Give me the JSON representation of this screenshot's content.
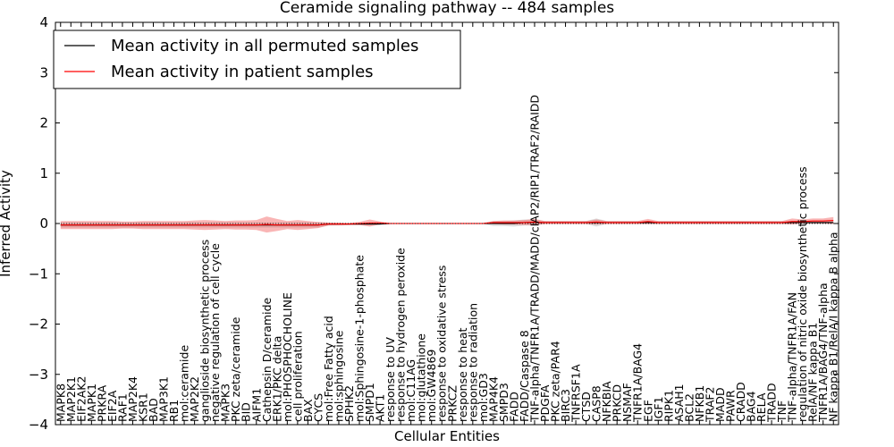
{
  "chart_data": {
    "type": "line",
    "title": "Ceramide signaling pathway -- 484 samples",
    "xlabel": "Cellular Entities",
    "ylabel": "Inferred Activity",
    "ylim": [
      -4,
      4
    ],
    "yticks": [
      -4,
      -3,
      -2,
      -1,
      0,
      1,
      2,
      3,
      4
    ],
    "legend_location": "top-left",
    "categories": [
      "MAPK8",
      "MAP2K1",
      "EIF2AK2",
      "MAPK1",
      "PRKRA",
      "EIF2A",
      "RAF1",
      "MAP2K4",
      "KSR1",
      "BAD",
      "MAP3K1",
      "RB1",
      "mol:ceramide",
      "MAP2K2",
      "ganglioside biosynthetic process",
      "negative regulation of cell cycle",
      "MAPK3",
      "PKC zeta/ceramide",
      "BID",
      "AIFM1",
      "Cathepsin D/ceramide",
      "ERK1/PKC delta",
      "mol:PHOSPHOCHOLINE",
      "cell proliferation",
      "BAX",
      "CYCS",
      "mol:Free Fatty acid",
      "mol:sphingosine",
      "SPHK2",
      "mol:Sphingosine-1-phosphate",
      "SMPD1",
      "AKT1",
      "response to UV",
      "response to hydrogen peroxide",
      "mol:C11AG",
      "mol:glutathione",
      "mol:GW4869",
      "response to oxidative stress",
      "PRKCZ",
      "response to heat",
      "response to radiation",
      "mol:GD3",
      "MAP4K4",
      "SMPD3",
      "FADD",
      "FADD/Caspase 8",
      "TNF-alpha/TNFR1A/TRADD/MADD/cIAP2/RIP1/TRAF2/RAIDD",
      "PDGFA",
      "PKC zeta/PAR4",
      "BIRC3",
      "TNFRSF1A",
      "CTSD",
      "CASP8",
      "NFKBIA",
      "PRKCD",
      "NSMAF",
      "TNFR1A/BAG4",
      "EGF",
      "IGF1",
      "RIPK1",
      "ASAH1",
      "BCL2",
      "NFKB1",
      "TRAF2",
      "MADD",
      "PAWR",
      "CRADD",
      "BAG4",
      "RELA",
      "TRADD",
      "TNF",
      "TNF-alpha/TNFR1A/FAN",
      "regulation of nitric oxide biosynthetic process",
      "RelA/NF kappa B1",
      "TNFR1A/BAG4/TNF-alpha",
      "NF kappa B1/RelA/I kappa B alpha"
    ],
    "series": [
      {
        "name": "Mean activity in all permuted samples",
        "color": "#000000",
        "values": [
          -0.03,
          -0.03,
          -0.03,
          -0.03,
          -0.03,
          -0.03,
          -0.03,
          -0.03,
          -0.03,
          -0.03,
          -0.03,
          -0.03,
          -0.03,
          -0.03,
          -0.03,
          -0.03,
          -0.03,
          -0.03,
          -0.03,
          -0.03,
          -0.03,
          -0.03,
          -0.03,
          -0.03,
          -0.03,
          -0.03,
          -0.01,
          -0.01,
          -0.01,
          -0.01,
          -0.01,
          -0.01,
          0,
          0,
          0,
          0,
          0,
          0,
          0,
          0,
          0,
          0,
          0,
          0,
          0,
          0.02,
          0.02,
          0.02,
          0.02,
          0.02,
          0.02,
          0.02,
          0.02,
          0.02,
          0.02,
          0.02,
          0.02,
          0.02,
          0.02,
          0.02,
          0.02,
          0.02,
          0.02,
          0.02,
          0.02,
          0.02,
          0.02,
          0.02,
          0.02,
          0.02,
          0.02,
          0.02,
          0.02,
          0.02,
          0.02,
          0.02
        ],
        "band": [
          0.05,
          0.05,
          0.05,
          0.05,
          0.05,
          0.05,
          0.05,
          0.05,
          0.05,
          0.05,
          0.05,
          0.05,
          0.05,
          0.05,
          0.05,
          0.05,
          0.05,
          0.05,
          0.05,
          0.05,
          0.05,
          0.05,
          0.05,
          0.05,
          0.05,
          0.05,
          0.03,
          0.02,
          0.02,
          0.02,
          0.02,
          0.02,
          0.01,
          0.01,
          0.01,
          0.01,
          0.01,
          0.01,
          0.01,
          0.01,
          0.01,
          0.01,
          0.05,
          0.05,
          0.06,
          0.06,
          0.06,
          0.03,
          0.03,
          0.03,
          0.03,
          0.03,
          0.08,
          0.03,
          0.03,
          0.03,
          0.03,
          0.03,
          0.03,
          0.03,
          0.03,
          0.03,
          0.03,
          0.03,
          0.03,
          0.03,
          0.03,
          0.03,
          0.03,
          0.03,
          0.03,
          0.03,
          0.03,
          0.03,
          0.03,
          0.03
        ]
      },
      {
        "name": "Mean activity in patient samples",
        "color": "#ff0000",
        "values": [
          -0.03,
          -0.03,
          -0.03,
          -0.03,
          -0.03,
          -0.03,
          -0.03,
          -0.03,
          -0.03,
          -0.03,
          -0.03,
          -0.03,
          -0.03,
          -0.03,
          -0.03,
          -0.03,
          -0.03,
          -0.03,
          -0.03,
          -0.03,
          -0.02,
          -0.03,
          -0.03,
          -0.03,
          -0.03,
          -0.03,
          -0.01,
          -0.01,
          -0.01,
          0,
          0.01,
          0.01,
          0,
          0,
          0,
          0,
          0,
          0,
          0,
          0,
          0,
          0,
          0.02,
          0.02,
          0.02,
          0.02,
          0.03,
          0.02,
          0.02,
          0.02,
          0.02,
          0.02,
          0.03,
          0.02,
          0.02,
          0.02,
          0.02,
          0.04,
          0.02,
          0.02,
          0.02,
          0.02,
          0.02,
          0.02,
          0.02,
          0.02,
          0.02,
          0.02,
          0.02,
          0.02,
          0.02,
          0.04,
          0.04,
          0.05,
          0.05,
          0.06
        ],
        "band": [
          0.08,
          0.08,
          0.08,
          0.08,
          0.08,
          0.08,
          0.07,
          0.07,
          0.08,
          0.08,
          0.08,
          0.08,
          0.08,
          0.09,
          0.1,
          0.09,
          0.08,
          0.09,
          0.09,
          0.1,
          0.16,
          0.12,
          0.08,
          0.1,
          0.08,
          0.06,
          0.03,
          0.03,
          0.02,
          0.03,
          0.07,
          0.03,
          0.01,
          0.01,
          0.01,
          0.01,
          0.01,
          0.01,
          0.01,
          0.01,
          0.01,
          0.01,
          0.03,
          0.04,
          0.04,
          0.05,
          0.06,
          0.03,
          0.03,
          0.03,
          0.03,
          0.03,
          0.05,
          0.03,
          0.03,
          0.03,
          0.03,
          0.05,
          0.03,
          0.03,
          0.03,
          0.03,
          0.03,
          0.03,
          0.03,
          0.03,
          0.03,
          0.03,
          0.03,
          0.03,
          0.03,
          0.06,
          0.04,
          0.05,
          0.05,
          0.07
        ]
      }
    ],
    "baseline": 0
  }
}
